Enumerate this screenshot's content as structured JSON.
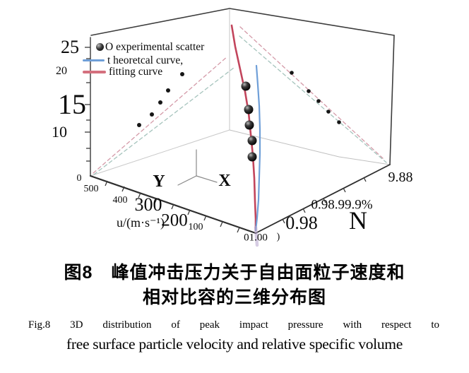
{
  "figure": {
    "caption_zh_1": "图8　峰值冲击压力关于自由面粒子速度和",
    "caption_zh_2": "相对比容的三维分布图",
    "caption_en_1": "Fig.8 3D distribution of peak impact pressure with respect to",
    "caption_en_2": "free surface particle velocity and relative specific volume"
  },
  "legend": {
    "items": [
      {
        "label": "O experimental scatter",
        "marker": "black-sphere"
      },
      {
        "label": "t heoretcal  curve,",
        "marker": "line",
        "color": "#6f9fd8"
      },
      {
        "label": "fitting curve",
        "marker": "line",
        "color": "#d4707e"
      }
    ]
  },
  "labels": {
    "z25": "25",
    "z20": "20",
    "z15": "15",
    "z10": "10",
    "z0": "0",
    "u500": "500",
    "u400": "400",
    "u300": "300",
    "u200": "200",
    "u100": "100",
    "u_title": "u/(m·s⁻¹)",
    "n100": "01.00",
    "paren": ")",
    "n098": "0.98",
    "n0989": "0.98.99.9%",
    "nN": "N",
    "n988": "9.88",
    "y_axis": "Y",
    "x_axis": "X"
  },
  "chart_data": {
    "type": "scatter",
    "projection": "3d",
    "z_axis": {
      "tick_labels": [
        "25",
        "20",
        "15",
        "10",
        "0"
      ],
      "range": [
        0,
        25
      ]
    },
    "u_axis": {
      "title": "u/(m·s⁻¹)",
      "tick_labels": [
        "500",
        "400",
        "300",
        "200",
        "100"
      ],
      "range": [
        0,
        500
      ]
    },
    "n_axis": {
      "title": "N",
      "tick_labels": [
        "1.00",
        "0.98",
        "99.9%",
        "9.88"
      ]
    },
    "series": [
      {
        "name": "experimental scatter",
        "style": "black 3D spheres on fitting curve",
        "approx_z_values": [
          17.4,
          12.8,
          9.8,
          6.9,
          3.6
        ]
      },
      {
        "name": "theoretcal curve",
        "color": "#6f9fd8",
        "style": "solid"
      },
      {
        "name": "fitting curve",
        "color": "#c2455c",
        "style": "solid"
      },
      {
        "name": "wall projections",
        "style": "dashed",
        "colors": [
          "#d49aa8",
          "#a6c4bd"
        ],
        "left_wall_dots": 5,
        "right_wall_dots": 5
      }
    ],
    "geometry": {
      "lines": [
        {
          "n": "box-top-left-edge",
          "c": "#3d3d3d",
          "w": 1.6,
          "p": [
            [
              129,
              50
            ],
            [
              325,
              12
            ]
          ]
        },
        {
          "n": "box-top-right-edge",
          "c": "#3d3d3d",
          "w": 1.6,
          "p": [
            [
              325,
              12
            ],
            [
              558,
              50
            ]
          ]
        },
        {
          "n": "box-right-edge",
          "c": "#3d3d3d",
          "w": 1.6,
          "p": [
            [
              558,
              50
            ],
            [
              552,
              233
            ]
          ]
        },
        {
          "n": "z-axis",
          "c": "#474747",
          "w": 1.5,
          "p": [
            [
              128,
              53
            ],
            [
              128,
              249
            ]
          ]
        },
        {
          "n": "box-corner-vertical",
          "c": "#c9c9c9",
          "w": 1.1,
          "p": [
            [
              325,
              13
            ],
            [
              325,
              184
            ]
          ]
        },
        {
          "n": "floor-left-edge",
          "c": "#c9c9c9",
          "w": 1,
          "p": [
            [
              325,
              184
            ],
            [
              128,
              249
            ]
          ]
        },
        {
          "n": "floor-right-edge",
          "c": "#c0c0c0",
          "w": 1,
          "p": [
            [
              325,
              184
            ],
            [
              480,
              222
            ],
            [
              552,
              233
            ]
          ]
        },
        {
          "n": "u-axis",
          "c": "#2e2e2e",
          "w": 2.2,
          "p": [
            [
              128,
              249
            ],
            [
              362,
              330
            ]
          ]
        },
        {
          "n": "n-axis",
          "c": "#2e2e2e",
          "w": 1.8,
          "p": [
            [
              362,
              330
            ],
            [
              552,
              233
            ]
          ]
        },
        {
          "n": "triad-z",
          "c": "#8a8a8a",
          "w": 1.2,
          "p": [
            [
              278,
              212
            ],
            [
              278,
              249
            ]
          ]
        },
        {
          "n": "triad-y",
          "c": "#8a8a8a",
          "w": 1.2,
          "p": [
            [
              278,
              249
            ],
            [
              252,
              262
            ]
          ]
        },
        {
          "n": "triad-x",
          "c": "#8a8a8a",
          "w": 1.2,
          "p": [
            [
              278,
              249
            ],
            [
              307,
              258
            ]
          ]
        },
        {
          "n": "proj-left-pink-dashed",
          "c": "#d49aa8",
          "w": 1.3,
          "d": "5,4",
          "p": [
            [
              132,
              245
            ],
            [
              322,
              80
            ]
          ]
        },
        {
          "n": "proj-left-teal-dashed",
          "c": "#a6c4bd",
          "w": 1.3,
          "d": "5,4",
          "p": [
            [
              133,
              247
            ],
            [
              331,
              96
            ]
          ]
        },
        {
          "n": "proj-right-pink-dashed",
          "c": "#d49aa8",
          "w": 1.3,
          "d": "5,4",
          "p": [
            [
              340,
              38
            ],
            [
              542,
              224
            ]
          ]
        },
        {
          "n": "proj-right-teal-dashed",
          "c": "#a6c4bd",
          "w": 1.3,
          "d": "5,4",
          "p": [
            [
              339,
              51
            ],
            [
              547,
              230
            ]
          ]
        },
        {
          "n": "fitting-curve",
          "c": "#c2455c",
          "w": 2.6,
          "p": [
            [
              328,
              36
            ],
            [
              333,
              66
            ],
            [
              340,
              98
            ],
            [
              347,
              130
            ],
            [
              352,
              160
            ],
            [
              355,
              190
            ],
            [
              358,
              220
            ],
            [
              360,
              252
            ],
            [
              361,
              285
            ],
            [
              362,
              310
            ],
            [
              362,
              326
            ]
          ]
        },
        {
          "n": "theoretical-curve",
          "c": "#6f9fd8",
          "w": 2.2,
          "p": [
            [
              363,
              93
            ],
            [
              365,
              120
            ],
            [
              367,
              150
            ],
            [
              368,
              183
            ],
            [
              368,
              217
            ],
            [
              367,
              250
            ],
            [
              366,
              283
            ],
            [
              364,
              308
            ],
            [
              362,
              326
            ]
          ]
        },
        {
          "n": "curves-tail",
          "c": "#b4a2cc",
          "w": 4.5,
          "o": 0.55,
          "p": [
            [
              362,
              322
            ],
            [
              364,
              347
            ]
          ]
        }
      ],
      "ticks": [
        [
          [
            120,
            67
          ],
          [
            128,
            67
          ]
        ],
        [
          [
            122,
            83
          ],
          [
            128,
            83
          ]
        ],
        [
          [
            120,
            101
          ],
          [
            128,
            101
          ]
        ],
        [
          [
            122,
            117
          ],
          [
            128,
            117
          ]
        ],
        [
          [
            120,
            148
          ],
          [
            128,
            148
          ]
        ],
        [
          [
            122,
            170
          ],
          [
            128,
            170
          ]
        ],
        [
          [
            120,
            187
          ],
          [
            128,
            187
          ]
        ],
        [
          [
            122,
            210
          ],
          [
            128,
            210
          ]
        ],
        [
          [
            122,
            228
          ],
          [
            128,
            228
          ]
        ],
        [
          [
            152,
            256
          ],
          [
            149,
            263
          ]
        ],
        [
          [
            176,
            264
          ],
          [
            173,
            271
          ]
        ],
        [
          [
            199,
            273
          ],
          [
            196,
            280
          ]
        ],
        [
          [
            222,
            281
          ],
          [
            219,
            288
          ]
        ],
        [
          [
            246,
            289
          ],
          [
            243,
            296
          ]
        ],
        [
          [
            269,
            297
          ],
          [
            266,
            304
          ]
        ],
        [
          [
            292,
            305
          ],
          [
            289,
            312
          ]
        ],
        [
          [
            315,
            314
          ],
          [
            312,
            321
          ]
        ],
        [
          [
            339,
            322
          ],
          [
            336,
            329
          ]
        ],
        [
          [
            400,
            310
          ],
          [
            403,
            316
          ]
        ],
        [
          [
            429,
            295
          ],
          [
            432,
            301
          ]
        ],
        [
          [
            458,
            281
          ],
          [
            461,
            287
          ]
        ],
        [
          [
            486,
            266
          ],
          [
            489,
            272
          ]
        ],
        [
          [
            515,
            251
          ],
          [
            518,
            257
          ]
        ]
      ],
      "dots": [
        [
          197,
          177,
          3
        ],
        [
          215,
          162,
          3
        ],
        [
          227,
          145,
          3
        ],
        [
          238,
          128,
          3
        ],
        [
          258,
          105,
          3
        ],
        [
          413,
          103,
          2.8
        ],
        [
          437,
          129,
          2.8
        ],
        [
          451,
          143,
          2.8
        ],
        [
          465,
          158,
          2.8
        ],
        [
          480,
          173,
          2.8
        ]
      ],
      "balls": [
        [
          348,
          122
        ],
        [
          352,
          155
        ],
        [
          353,
          177
        ],
        [
          357,
          199
        ],
        [
          357,
          222
        ]
      ]
    }
  }
}
